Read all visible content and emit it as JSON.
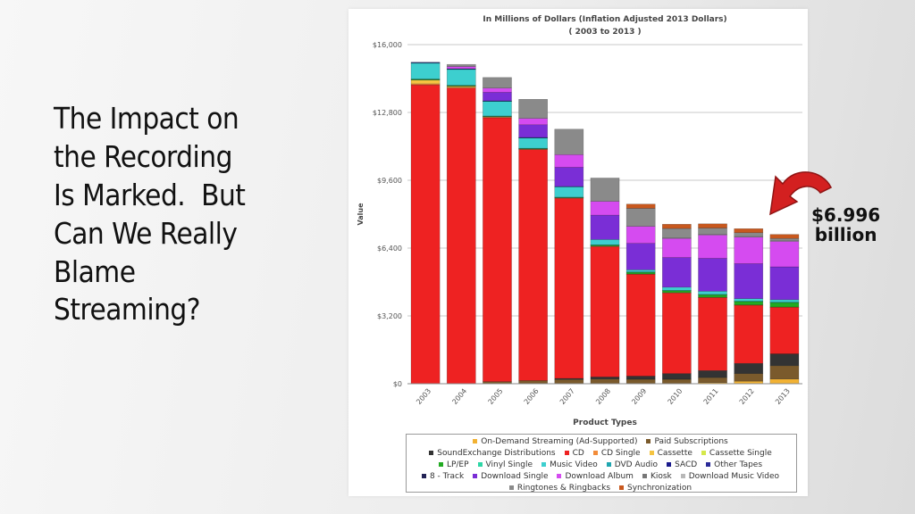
{
  "slide": {
    "title_lines": [
      "The Impact on",
      "the Recording",
      "Is Marked.  But",
      "Can We Really",
      "Blame",
      "Streaming?"
    ]
  },
  "callout": {
    "line1": "$6.996",
    "line2": "billion",
    "color": "#d32020"
  },
  "chart_data": {
    "type": "bar",
    "stacked": true,
    "title": "In Millions of Dollars (Inflation Adjusted 2013 Dollars)",
    "subtitle": "( 2003 to 2013 )",
    "xlabel": "Product Types",
    "ylabel": "Value",
    "ylim": [
      0,
      16000
    ],
    "yticks": [
      0,
      3200,
      6400,
      9600,
      12800,
      16000
    ],
    "ytick_labels": [
      "$0",
      "$3,200",
      "$6,400",
      "$9,600",
      "$12,800",
      "$16,000"
    ],
    "grid": true,
    "legend_position": "bottom",
    "categories": [
      "2003",
      "2004",
      "2005",
      "2006",
      "2007",
      "2008",
      "2009",
      "2010",
      "2011",
      "2012",
      "2013"
    ],
    "series": [
      {
        "name": "On-Demand Streaming (Ad-Supported)",
        "color": "#f2b233",
        "values": [
          0,
          0,
          0,
          0,
          0,
          0,
          0,
          0,
          50,
          120,
          220
        ]
      },
      {
        "name": "Paid Subscriptions",
        "color": "#7a5a2c",
        "values": [
          0,
          0,
          100,
          150,
          200,
          220,
          210,
          210,
          240,
          360,
          630
        ]
      },
      {
        "name": "SoundExchange Distributions",
        "color": "#333333",
        "values": [
          0,
          0,
          0,
          0,
          50,
          100,
          150,
          270,
          330,
          480,
          560
        ]
      },
      {
        "name": "CD",
        "color": "#ee2222",
        "values": [
          14100,
          13950,
          12450,
          10900,
          8500,
          6150,
          4800,
          3800,
          3450,
          2750,
          2200
        ]
      },
      {
        "name": "CD Single",
        "color": "#f28c3a",
        "values": [
          50,
          40,
          30,
          20,
          20,
          20,
          20,
          20,
          10,
          10,
          10
        ]
      },
      {
        "name": "Cassette",
        "color": "#f5c441",
        "values": [
          180,
          50,
          20,
          10,
          0,
          0,
          0,
          0,
          0,
          0,
          0
        ]
      },
      {
        "name": "Cassette Single",
        "color": "#d5e84a",
        "values": [
          0,
          0,
          0,
          0,
          0,
          0,
          0,
          0,
          0,
          0,
          0
        ]
      },
      {
        "name": "LP/EP",
        "color": "#22aa22",
        "values": [
          30,
          25,
          20,
          20,
          25,
          60,
          90,
          100,
          130,
          170,
          220
        ]
      },
      {
        "name": "Vinyl Single",
        "color": "#2ed6a6",
        "values": [
          20,
          20,
          15,
          10,
          10,
          5,
          5,
          5,
          5,
          5,
          5
        ]
      },
      {
        "name": "Music Video",
        "color": "#3dcfcf",
        "values": [
          750,
          750,
          700,
          500,
          500,
          250,
          100,
          150,
          150,
          120,
          120
        ]
      },
      {
        "name": "DVD Audio",
        "color": "#1fa6b0",
        "values": [
          10,
          10,
          5,
          5,
          0,
          0,
          0,
          0,
          0,
          0,
          0
        ]
      },
      {
        "name": "SACD",
        "color": "#1a1a8c",
        "values": [
          30,
          20,
          10,
          5,
          5,
          0,
          0,
          0,
          0,
          0,
          0
        ]
      },
      {
        "name": "Other Tapes",
        "color": "#2b2b99",
        "values": [
          0,
          0,
          0,
          0,
          0,
          0,
          0,
          0,
          0,
          0,
          0
        ]
      },
      {
        "name": "8 - Track",
        "color": "#222255",
        "values": [
          0,
          0,
          0,
          0,
          0,
          0,
          0,
          0,
          0,
          0,
          0
        ]
      },
      {
        "name": "Download Single",
        "color": "#7a2ed6",
        "values": [
          0,
          0,
          400,
          600,
          900,
          1150,
          1250,
          1400,
          1550,
          1650,
          1550
        ]
      },
      {
        "name": "Download Album",
        "color": "#d54bf0",
        "values": [
          0,
          100,
          200,
          300,
          600,
          650,
          800,
          900,
          1100,
          1250,
          1200
        ]
      },
      {
        "name": "Kiosk",
        "color": "#777777",
        "values": [
          0,
          0,
          0,
          0,
          0,
          0,
          0,
          0,
          0,
          0,
          0
        ]
      },
      {
        "name": "Download Music Video",
        "color": "#b8b8b8",
        "values": [
          0,
          0,
          0,
          0,
          0,
          0,
          0,
          20,
          30,
          30,
          30
        ]
      },
      {
        "name": "Ringtones & Ringbacks",
        "color": "#8a8a8a",
        "values": [
          0,
          100,
          500,
          900,
          1200,
          1100,
          850,
          450,
          300,
          180,
          110
        ]
      },
      {
        "name": "Synchronization",
        "color": "#c8581e",
        "values": [
          0,
          0,
          0,
          0,
          0,
          0,
          200,
          200,
          200,
          190,
          190
        ]
      }
    ]
  }
}
